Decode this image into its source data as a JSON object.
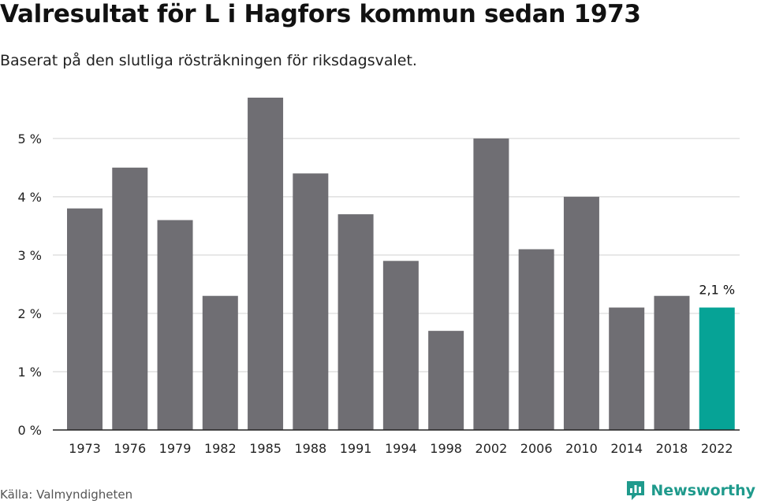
{
  "header": {
    "title": "Valresultat för L i Hagfors kommun sedan 1973",
    "subtitle": "Baserat på den slutliga rösträkningen för riksdagsvalet."
  },
  "footer": {
    "source": "Källa: Valmyndigheten",
    "brand": "Newsworthy",
    "brand_icon": "newsworthy-logo-icon"
  },
  "colors": {
    "bar": "#6f6e73",
    "highlight": "#06a396",
    "grid": "#d9d9d9",
    "axis": "#222222",
    "brand": "#1f9a8c"
  },
  "chart_data": {
    "type": "bar",
    "title": "Valresultat för L i Hagfors kommun sedan 1973",
    "subtitle": "Baserat på den slutliga rösträkningen för riksdagsvalet.",
    "categories": [
      "1973",
      "1976",
      "1979",
      "1982",
      "1985",
      "1988",
      "1991",
      "1994",
      "1998",
      "2002",
      "2006",
      "2010",
      "2014",
      "2018",
      "2022"
    ],
    "values": [
      3.8,
      4.5,
      3.6,
      2.3,
      5.7,
      4.4,
      3.7,
      2.9,
      1.7,
      5.0,
      3.1,
      4.0,
      2.1,
      2.3,
      2.1
    ],
    "ylim": [
      0,
      5.7
    ],
    "yticks": [
      0,
      1,
      2,
      3,
      4,
      5
    ],
    "ytick_labels": [
      "0 %",
      "1 %",
      "2 %",
      "3 %",
      "4 %",
      "5 %"
    ],
    "grid": true,
    "highlight_index": 14,
    "data_labels": [
      {
        "index": 14,
        "text": "2,1 %"
      }
    ]
  }
}
